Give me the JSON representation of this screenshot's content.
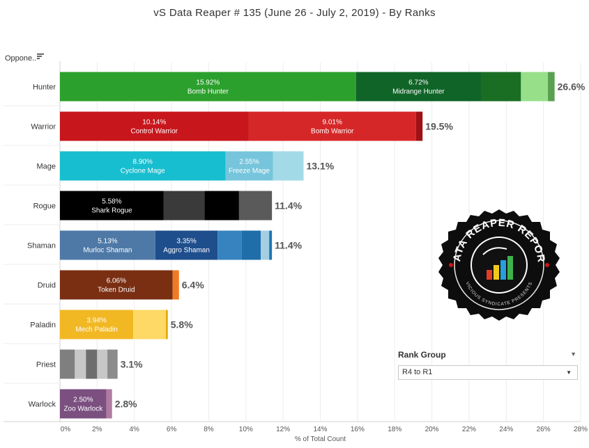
{
  "title": "vS Data Reaper #  135 (June 26 - July 2, 2019) - By Ranks",
  "row_header": {
    "label": "Oppone..",
    "sort_icon": "sort-descending-icon"
  },
  "rank_group": {
    "title": "Rank Group",
    "selected": "R4 to R1"
  },
  "logo": {
    "top_text": "DATA REAPER REPORT",
    "bottom_text": "VICIOUS SYNDICATE PRESENTS",
    "icon": "bar-chart-icon"
  },
  "chart_data": {
    "type": "bar",
    "orientation": "horizontal",
    "stacked": true,
    "title": "vS Data Reaper #  135 (June 26 - July 2, 2019) - By Ranks",
    "xlabel": "% of Total Count",
    "ylabel": "Oppone..",
    "xlim": [
      0,
      28
    ],
    "xticks": [
      "0%",
      "2%",
      "4%",
      "6%",
      "8%",
      "10%",
      "12%",
      "14%",
      "16%",
      "18%",
      "20%",
      "22%",
      "24%",
      "26%",
      "28%"
    ],
    "grid": true,
    "categories": [
      "Hunter",
      "Warrior",
      "Mage",
      "Rogue",
      "Shaman",
      "Druid",
      "Paladin",
      "Priest",
      "Warlock"
    ],
    "totals": [
      "26.6%",
      "19.5%",
      "13.1%",
      "11.4%",
      "11.4%",
      "6.4%",
      "5.8%",
      "3.1%",
      "2.8%"
    ],
    "rows": [
      {
        "class": "Hunter",
        "total": 26.6,
        "segments": [
          {
            "value": 15.92,
            "color": "#2ca02c",
            "pct_label": "15.92%",
            "name_label": "Bomb Hunter"
          },
          {
            "value": 6.72,
            "color": "#106428",
            "pct_label": "6.72%",
            "name_label": "Midrange Hunter"
          },
          {
            "value": 2.15,
            "color": "#1a6e24"
          },
          {
            "value": 1.45,
            "color": "#98df8a"
          },
          {
            "value": 0.36,
            "color": "#59a14f"
          }
        ]
      },
      {
        "class": "Warrior",
        "total": 19.5,
        "segments": [
          {
            "value": 10.14,
            "color": "#c8161d",
            "pct_label": "10.14%",
            "name_label": "Control Warrior"
          },
          {
            "value": 9.01,
            "color": "#d62728",
            "pct_label": "9.01%",
            "name_label": "Bomb Warrior"
          },
          {
            "value": 0.35,
            "color": "#a01015"
          }
        ]
      },
      {
        "class": "Mage",
        "total": 13.1,
        "segments": [
          {
            "value": 8.9,
            "color": "#17becf",
            "pct_label": "8.90%",
            "name_label": "Cyclone Mage"
          },
          {
            "value": 2.55,
            "color": "#76c5dc",
            "pct_label": "2.55%",
            "name_label": "Freeze Mage"
          },
          {
            "value": 1.65,
            "color": "#a3dae7"
          }
        ]
      },
      {
        "class": "Rogue",
        "total": 11.4,
        "segments": [
          {
            "value": 5.58,
            "color": "#000000",
            "pct_label": "5.58%",
            "name_label": "Shark Rogue"
          },
          {
            "value": 2.2,
            "color": "#3a3a3a"
          },
          {
            "value": 1.85,
            "color": "#000000"
          },
          {
            "value": 1.77,
            "color": "#5a5a5a"
          }
        ]
      },
      {
        "class": "Shaman",
        "total": 11.4,
        "segments": [
          {
            "value": 5.13,
            "color": "#4e79a7",
            "pct_label": "5.13%",
            "name_label": "Murloc Shaman"
          },
          {
            "value": 3.35,
            "color": "#1f4e8c",
            "pct_label": "3.35%",
            "name_label": "Aggro Shaman"
          },
          {
            "value": 1.3,
            "color": "#3683bf"
          },
          {
            "value": 1.02,
            "color": "#1f6eaa"
          },
          {
            "value": 0.45,
            "color": "#a6cee3"
          },
          {
            "value": 0.15,
            "color": "#1f77b4"
          }
        ]
      },
      {
        "class": "Druid",
        "total": 6.4,
        "segments": [
          {
            "value": 6.06,
            "color": "#7a2e12",
            "pct_label": "6.06%",
            "name_label": "Token Druid"
          },
          {
            "value": 0.34,
            "color": "#f07b22"
          }
        ]
      },
      {
        "class": "Paladin",
        "total": 5.8,
        "segments": [
          {
            "value": 3.94,
            "color": "#f2b824",
            "pct_label": "3.94%",
            "name_label": "Mech Paladin"
          },
          {
            "value": 1.76,
            "color": "#ffd966"
          },
          {
            "value": 0.1,
            "color": "#e6a800"
          }
        ]
      },
      {
        "class": "Priest",
        "total": 3.1,
        "segments": [
          {
            "value": 0.8,
            "color": "#7f7f7f"
          },
          {
            "value": 0.6,
            "color": "#c7c7c7"
          },
          {
            "value": 0.6,
            "color": "#6d6d6d"
          },
          {
            "value": 0.55,
            "color": "#c7c7c7"
          },
          {
            "value": 0.55,
            "color": "#8c8c8c"
          }
        ]
      },
      {
        "class": "Warlock",
        "total": 2.8,
        "segments": [
          {
            "value": 2.5,
            "color": "#7b4f80",
            "pct_label": "2.50%",
            "name_label": "Zoo Warlock"
          },
          {
            "value": 0.3,
            "color": "#b07aa1"
          }
        ]
      }
    ]
  }
}
